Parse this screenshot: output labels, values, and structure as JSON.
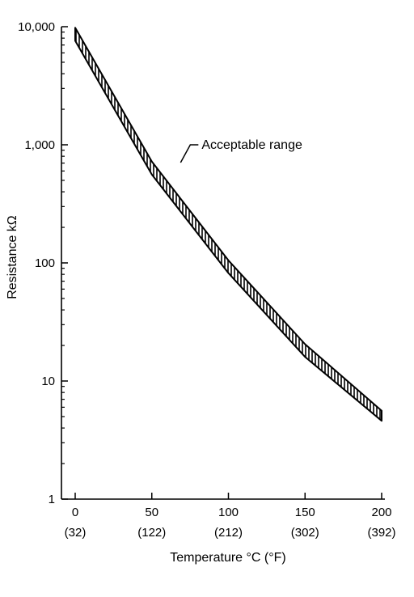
{
  "chart_data": {
    "type": "area",
    "title": "",
    "xlabel": "Temperature °C (°F)",
    "ylabel": "Resistance kΩ",
    "y_scale": "log",
    "xlim": [
      0,
      200
    ],
    "ylim": [
      1,
      10000
    ],
    "x_ticks": [
      {
        "value": 0,
        "c": "0",
        "f": "(32)"
      },
      {
        "value": 50,
        "c": "50",
        "f": "(122)"
      },
      {
        "value": 100,
        "c": "100",
        "f": "(212)"
      },
      {
        "value": 150,
        "c": "150",
        "f": "(302)"
      },
      {
        "value": 200,
        "c": "200",
        "f": "(392)"
      }
    ],
    "y_ticks": [
      {
        "value": 1,
        "label": "1"
      },
      {
        "value": 10,
        "label": "10"
      },
      {
        "value": 100,
        "label": "100"
      },
      {
        "value": 1000,
        "label": "1,000"
      },
      {
        "value": 10000,
        "label": "10,000"
      }
    ],
    "grid": false,
    "series": [
      {
        "name": "Acceptable range",
        "x": [
          0,
          50,
          100,
          150,
          200
        ],
        "upper": [
          9800,
          720,
          105,
          20.5,
          5.6
        ],
        "lower": [
          7600,
          560,
          82,
          16.0,
          4.6
        ]
      }
    ],
    "annotation": {
      "text": "Acceptable range",
      "x": 73,
      "y": 1000
    }
  }
}
